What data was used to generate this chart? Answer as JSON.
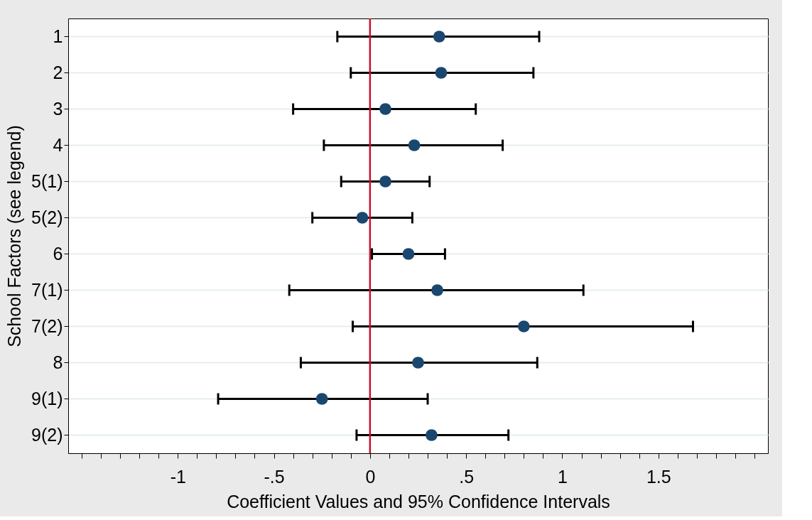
{
  "chart_data": {
    "type": "scatter",
    "xlabel": "Coefficient Values and 95% Confidence Intervals",
    "ylabel": "School Factors (see legend)",
    "categories": [
      "1",
      "2",
      "3",
      "4",
      "5(1)",
      "5(2)",
      "6",
      "7(1)",
      "7(2)",
      "8",
      "9(1)",
      "9(2)"
    ],
    "series": [
      {
        "color": "#1a476f",
        "values": [
          0.36,
          0.37,
          0.08,
          0.23,
          0.08,
          -0.04,
          0.2,
          0.35,
          0.8,
          0.25,
          -0.25,
          0.32
        ],
        "errors": [
          [
            -0.17,
            0.88
          ],
          [
            -0.1,
            0.85
          ],
          [
            -0.4,
            0.55
          ],
          [
            -0.24,
            0.69
          ],
          [
            -0.15,
            0.31
          ],
          [
            -0.3,
            0.22
          ],
          [
            0.01,
            0.39
          ],
          [
            -0.42,
            1.11
          ],
          [
            -0.09,
            1.68
          ],
          [
            -0.36,
            0.87
          ],
          [
            -0.79,
            0.3
          ],
          [
            -0.07,
            0.72
          ]
        ]
      }
    ],
    "orientation": "horizontal",
    "xlim": [
      -1.57,
      2.07
    ],
    "xticks": [
      {
        "value": -1.5,
        "label": null
      },
      {
        "value": -1.4,
        "label": null
      },
      {
        "value": -1.3,
        "label": null
      },
      {
        "value": -1.2,
        "label": null
      },
      {
        "value": -1.1,
        "label": null
      },
      {
        "value": -1,
        "label": "-1"
      },
      {
        "value": -0.9,
        "label": null
      },
      {
        "value": -0.8,
        "label": null
      },
      {
        "value": -0.7,
        "label": null
      },
      {
        "value": -0.6,
        "label": null
      },
      {
        "value": -0.5,
        "label": "-.5"
      },
      {
        "value": -0.4,
        "label": null
      },
      {
        "value": -0.3,
        "label": null
      },
      {
        "value": -0.2,
        "label": null
      },
      {
        "value": -0.1,
        "label": null
      },
      0,
      {
        "value": 0.1,
        "label": null
      },
      {
        "value": 0.2,
        "label": null
      },
      {
        "value": 0.3,
        "label": null
      },
      {
        "value": 0.4,
        "label": null
      },
      {
        "value": 0.5,
        "label": ".5"
      },
      {
        "value": 0.6,
        "label": null
      },
      {
        "value": 0.7,
        "label": null
      },
      {
        "value": 0.8,
        "label": null
      },
      {
        "value": 0.9,
        "label": null
      },
      1,
      {
        "value": 1.1,
        "label": null
      },
      {
        "value": 1.2,
        "label": null
      },
      {
        "value": 1.3,
        "label": null
      },
      {
        "value": 1.4,
        "label": null
      },
      1.5,
      {
        "value": 1.6,
        "label": null
      },
      {
        "value": 1.7,
        "label": null
      },
      {
        "value": 1.8,
        "label": null
      },
      {
        "value": 1.9,
        "label": null
      },
      {
        "value": 2.0,
        "label": null
      }
    ],
    "ref_lines": [
      {
        "axis": "x",
        "value": 0,
        "color": "#c8102e"
      }
    ],
    "grid": "y",
    "marker": "circle"
  }
}
